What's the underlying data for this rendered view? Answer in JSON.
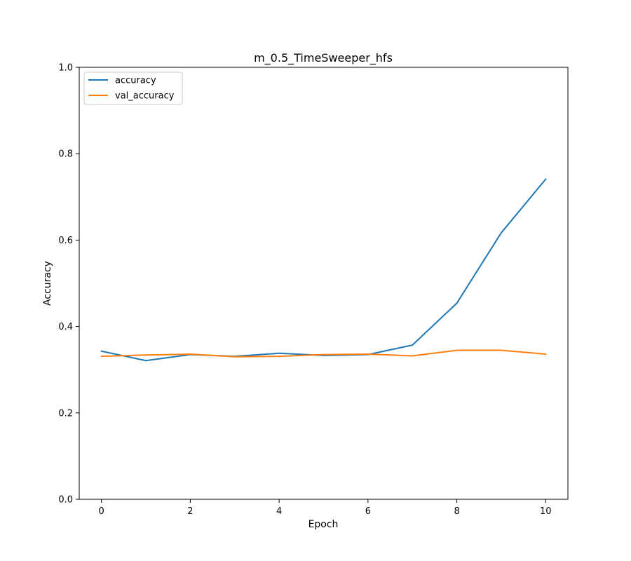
{
  "chart_data": {
    "type": "line",
    "title": "m_0.5_TimeSweeper_hfs",
    "xlabel": "Epoch",
    "ylabel": "Accuracy",
    "xlim": [
      -0.5,
      10.5
    ],
    "ylim": [
      0.0,
      1.0
    ],
    "x_ticks": [
      0,
      2,
      4,
      6,
      8,
      10
    ],
    "y_ticks": [
      0.0,
      0.2,
      0.4,
      0.6,
      0.8,
      1.0
    ],
    "x_tick_labels": [
      "0",
      "2",
      "4",
      "6",
      "8",
      "10"
    ],
    "y_tick_labels": [
      "0.0",
      "0.2",
      "0.4",
      "0.6",
      "0.8",
      "1.0"
    ],
    "grid": false,
    "legend_position": "top-left",
    "x": [
      0,
      1,
      2,
      3,
      4,
      5,
      6,
      7,
      8,
      9,
      10
    ],
    "series": [
      {
        "name": "accuracy",
        "color": "#1f77b4",
        "values": [
          0.343,
          0.321,
          0.335,
          0.331,
          0.338,
          0.333,
          0.335,
          0.357,
          0.454,
          0.617,
          0.741
        ]
      },
      {
        "name": "val_accuracy",
        "color": "#ff7f0e",
        "values": [
          0.331,
          0.334,
          0.336,
          0.33,
          0.331,
          0.335,
          0.336,
          0.332,
          0.345,
          0.345,
          0.336
        ]
      }
    ]
  }
}
